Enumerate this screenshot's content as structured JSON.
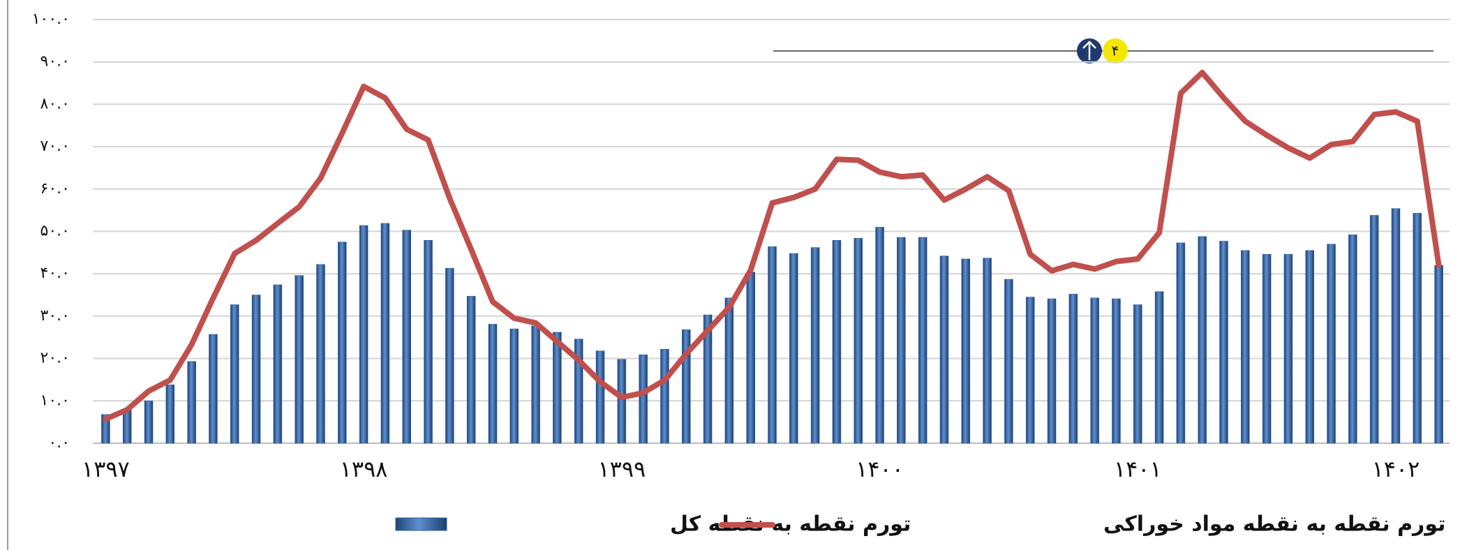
{
  "page_number": "۴",
  "chart_data": {
    "type": "bar",
    "categories": [
      "۱۳۹۷",
      null,
      null,
      null,
      null,
      null,
      null,
      null,
      null,
      null,
      null,
      null,
      "۱۳۹۸",
      null,
      null,
      null,
      null,
      null,
      null,
      null,
      null,
      null,
      null,
      null,
      "۱۳۹۹",
      null,
      null,
      null,
      null,
      null,
      null,
      null,
      null,
      null,
      null,
      null,
      "۱۴۰۰",
      null,
      null,
      null,
      null,
      null,
      null,
      null,
      null,
      null,
      null,
      null,
      "۱۴۰۱",
      null,
      null,
      null,
      null,
      null,
      null,
      null,
      null,
      null,
      null,
      null,
      "۱۴۰۲",
      null,
      null
    ],
    "series": [
      {
        "name": "تورم نقطه به نقطه کل",
        "type": "bar",
        "color": "#2f5f9e",
        "values": [
          6.8,
          8,
          10,
          13.8,
          19.3,
          25.7,
          32.7,
          35,
          37.4,
          39.6,
          42.2,
          47.5,
          51.4,
          51.9,
          50.3,
          47.9,
          41.3,
          34.7,
          28.1,
          27,
          27.7,
          26.2,
          24.6,
          21.8,
          19.8,
          20.9,
          22.2,
          26.8,
          30.3,
          34.3,
          40.4,
          46.4,
          44.8,
          46.2,
          47.9,
          48.4,
          51,
          48.6,
          48.6,
          44.2,
          43.5,
          43.7,
          38.7,
          34.5,
          34.1,
          35.2,
          34.3,
          34.1,
          32.7,
          35.8,
          47.3,
          48.8,
          47.7,
          45.5,
          44.6,
          44.6,
          45.5,
          47,
          49.2,
          53.8,
          55.4,
          54.3,
          42
        ]
      },
      {
        "name": "تورم نقطه به نقطه مواد خوراکی",
        "type": "line",
        "color": "#c0504d",
        "values": [
          5.7,
          7.9,
          12.3,
          14.9,
          23.3,
          34.3,
          44.8,
          47.9,
          51.9,
          55.8,
          62.6,
          73.2,
          84.2,
          81.5,
          74.1,
          71.6,
          57.8,
          45.7,
          33.4,
          29.5,
          28.4,
          24,
          19.6,
          14.5,
          10.8,
          11.9,
          14.9,
          21.1,
          26.6,
          32.1,
          40.9,
          56.7,
          58,
          60,
          67,
          66.8,
          64,
          62.9,
          63.3,
          57.4,
          60,
          62.9,
          59.6,
          44.6,
          40.7,
          42.2,
          41.1,
          42.9,
          43.5,
          49.7,
          82.6,
          87.5,
          81.5,
          76,
          72.7,
          69.7,
          67.3,
          70.5,
          71.2,
          77.6,
          78.2,
          76,
          42
        ]
      }
    ],
    "ylim": [
      0,
      100
    ],
    "yticks": [
      {
        "value": 0,
        "label": "۰.۰"
      },
      {
        "value": 10,
        "label": "۱۰.۰"
      },
      {
        "value": 20,
        "label": "۲۰.۰"
      },
      {
        "value": 30,
        "label": "۳۰.۰"
      },
      {
        "value": 40,
        "label": "۴۰.۰"
      },
      {
        "value": 50,
        "label": "۵۰.۰"
      },
      {
        "value": 60,
        "label": "۶۰.۰"
      },
      {
        "value": 70,
        "label": "۷۰.۰"
      },
      {
        "value": 80,
        "label": "۸۰.۰"
      },
      {
        "value": 90,
        "label": "۹۰.۰"
      },
      {
        "value": 100,
        "label": "۱۰۰.۰"
      }
    ],
    "grid": true,
    "legend": "bottom"
  }
}
